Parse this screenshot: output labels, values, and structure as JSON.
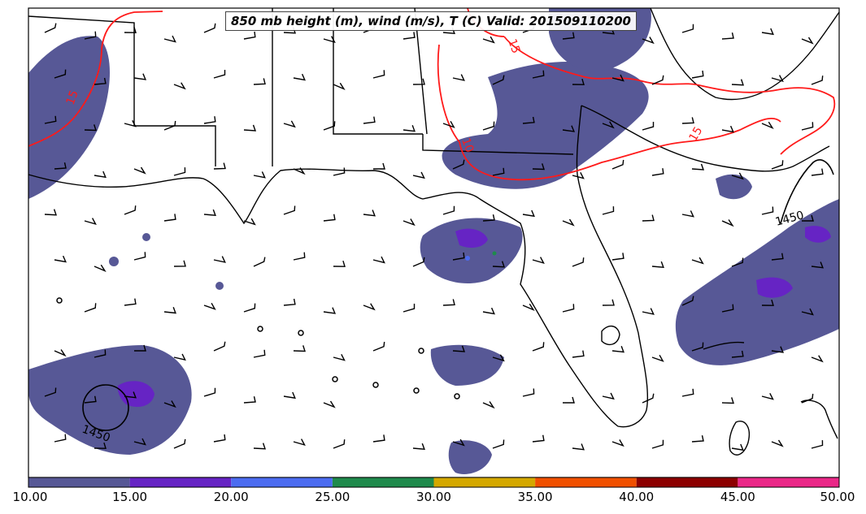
{
  "title": "850 mb height (m), wind (m/s), T (C) Valid: 201509110200",
  "colorbar": {
    "ticks": [
      "10.00",
      "15.00",
      "20.00",
      "25.00",
      "30.00",
      "35.00",
      "40.00",
      "45.00",
      "50.00"
    ],
    "colors": [
      "#575896",
      "#6624c4",
      "#4c6cf0",
      "#1f8a4c",
      "#d4a800",
      "#f05000",
      "#8c0000",
      "#ea2888"
    ]
  },
  "contours": {
    "height_labels": [
      "1450",
      "1450"
    ],
    "temperature_labels": [
      "15",
      "10",
      "15",
      "15"
    ],
    "height_color": "#000000",
    "temperature_color": "#ff0000"
  },
  "colors": {
    "coast": "#000000",
    "shading": "#575896",
    "shading_strong": "#6624c4"
  }
}
